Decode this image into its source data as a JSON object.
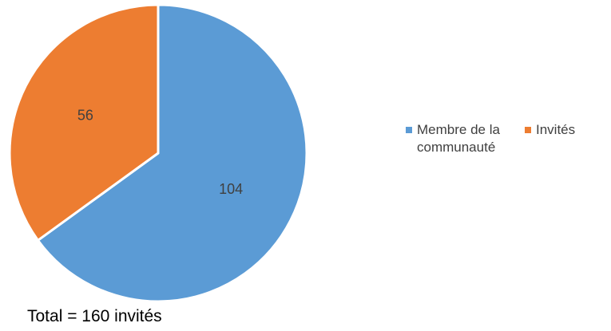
{
  "chart_data": {
    "type": "pie",
    "categories": [
      "Membre de la communauté",
      "Invités"
    ],
    "values": [
      104,
      56
    ],
    "colors": [
      "#5B9BD5",
      "#ED7D31"
    ],
    "data_labels": [
      "104",
      "56"
    ],
    "start_angle_deg": 0,
    "direction": "clockwise",
    "legend_position": "right"
  },
  "annotation": {
    "total_text": "Total = 160 invités"
  }
}
